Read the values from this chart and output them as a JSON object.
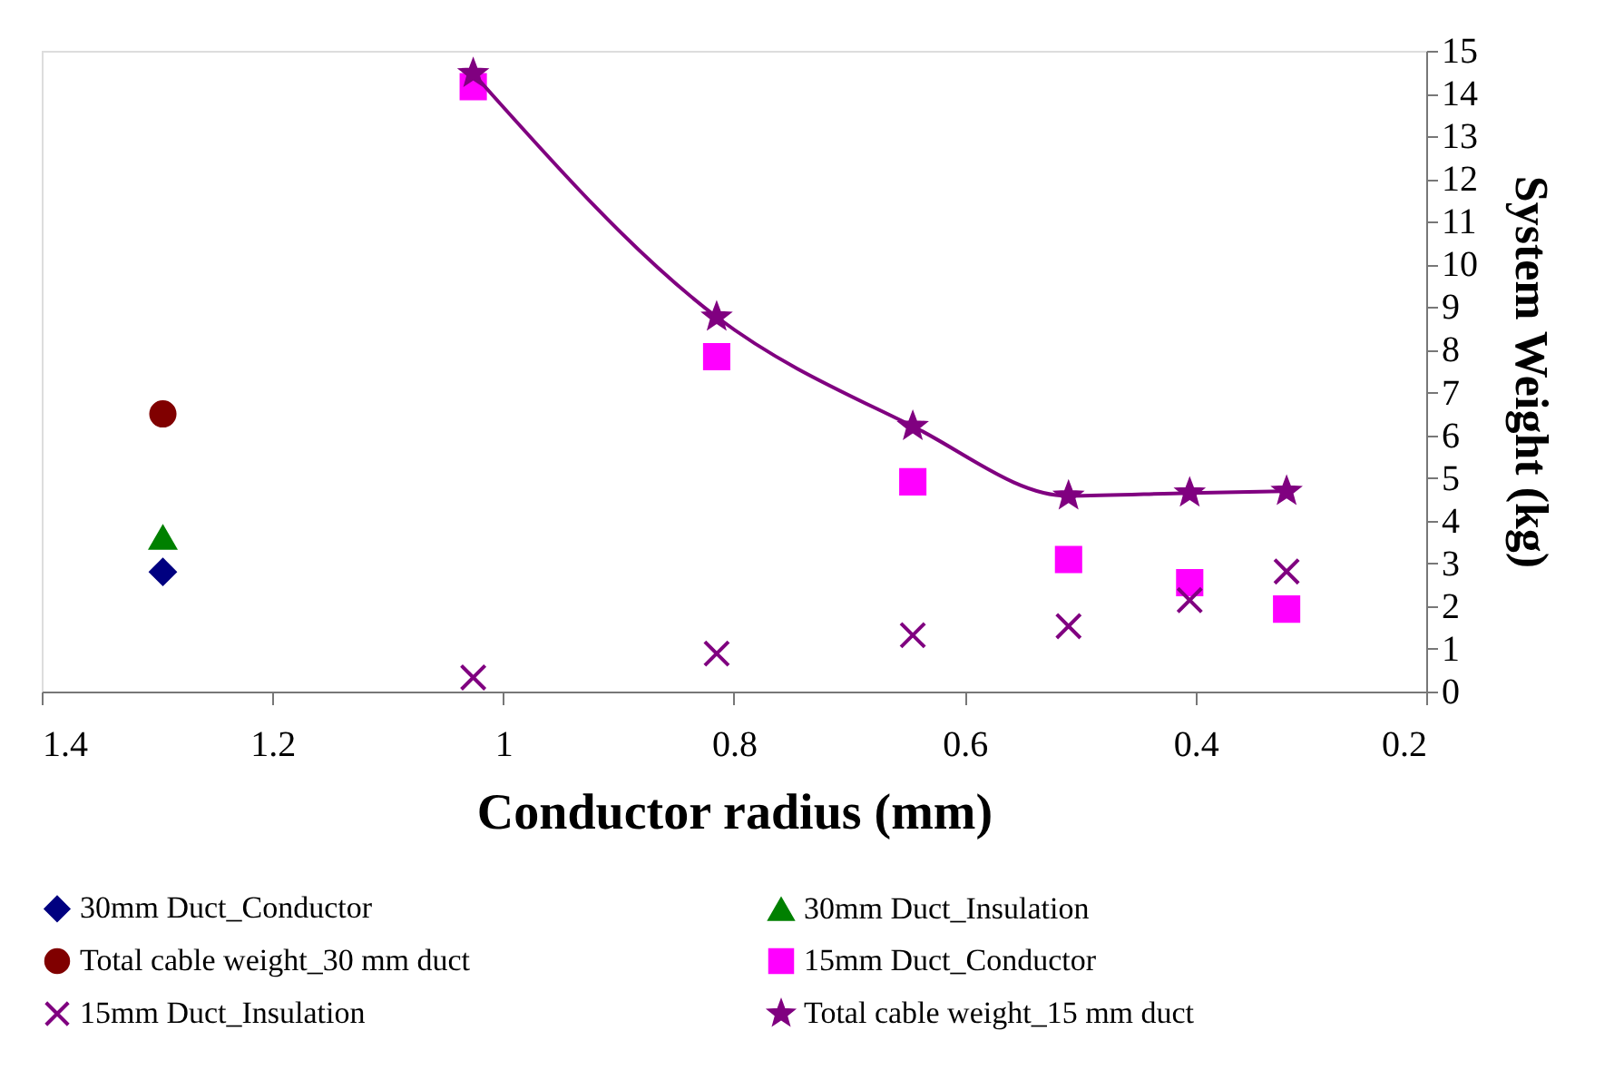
{
  "chart_data": {
    "type": "scatter",
    "xlabel": "Conductor radius (mm)",
    "ylabel": "System Weight (kg)",
    "xlim": [
      1.4,
      0.2
    ],
    "xticks": [
      1.4,
      1.2,
      1,
      0.8,
      0.6,
      0.4,
      0.2
    ],
    "ylim": [
      0,
      15
    ],
    "yticks": [
      0,
      1,
      2,
      3,
      4,
      5,
      6,
      7,
      8,
      9,
      10,
      11,
      12,
      13,
      14,
      15
    ],
    "grid": false,
    "legend": "bottom",
    "series": [
      {
        "name": "30mm Duct_Conductor",
        "type": "scatter",
        "marker": "diamond",
        "color": "#000080",
        "x": [
          1.295
        ],
        "values": [
          2.8
        ]
      },
      {
        "name": "30mm Duct_Insulation",
        "type": "scatter",
        "marker": "triangle",
        "color": "#008000",
        "x": [
          1.295
        ],
        "values": [
          3.6
        ]
      },
      {
        "name": "Total cable weight_30 mm duct",
        "type": "scatter",
        "marker": "circle",
        "color": "#800000",
        "x": [
          1.295
        ],
        "values": [
          6.5
        ]
      },
      {
        "name": "15mm Duct_Conductor",
        "type": "scatter",
        "marker": "square",
        "color": "#ff00ff",
        "x": [
          1.026,
          0.815,
          0.645,
          0.51,
          0.405,
          0.321
        ],
        "values": [
          14.16,
          7.84,
          4.91,
          3.09,
          2.55,
          1.93
        ]
      },
      {
        "name": "15mm Duct_Insulation",
        "type": "scatter",
        "marker": "cross",
        "color": "#800080",
        "x": [
          1.026,
          0.815,
          0.645,
          0.51,
          0.405,
          0.321
        ],
        "values": [
          0.33,
          0.89,
          1.32,
          1.53,
          2.14,
          2.81
        ]
      },
      {
        "name": "Total cable weight_15 mm duct",
        "type": "line",
        "marker": "star",
        "line_style": "solid",
        "color": "#800080",
        "x": [
          1.026,
          0.815,
          0.645,
          0.51,
          0.405,
          0.321
        ],
        "values": [
          14.47,
          8.77,
          6.21,
          4.58,
          4.65,
          4.69
        ]
      }
    ]
  }
}
